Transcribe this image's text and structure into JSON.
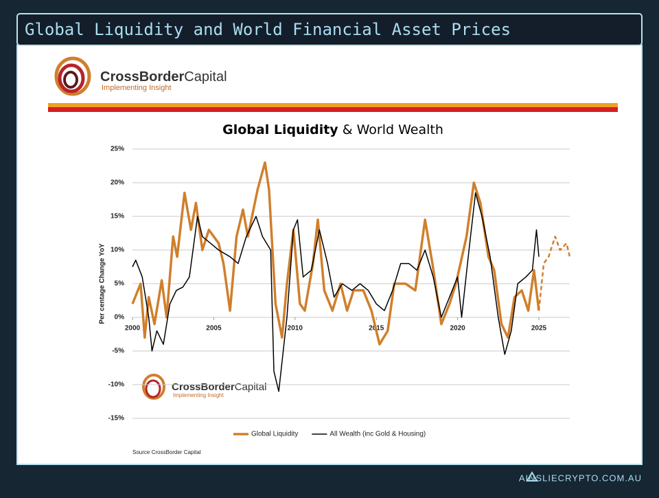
{
  "header": {
    "title": "Global Liquidity and World Financial Asset Prices"
  },
  "logo": {
    "name_bold": "CrossBorder",
    "name_rest": "Capital",
    "tagline": "Implementing Insight"
  },
  "chart_data": {
    "type": "line",
    "title": [
      "Global Liquidity",
      "& World Wealth"
    ],
    "y_label": "Per centage Change YoY",
    "source": "Source CrossBorder Capital",
    "xlim": [
      2000,
      2026.9
    ],
    "xticks": [
      2000,
      2005,
      2010,
      2015,
      2020,
      2025
    ],
    "ylim": [
      -15,
      25
    ],
    "yticks": [
      {
        "value": -15,
        "label": "-15%"
      },
      {
        "value": -10,
        "label": "-10%"
      },
      {
        "value": -5,
        "label": "-5%"
      },
      {
        "value": 0,
        "label": "0%"
      },
      {
        "value": 5,
        "label": "5%"
      },
      {
        "value": 10,
        "label": "10%"
      },
      {
        "value": 15,
        "label": "15%"
      },
      {
        "value": 20,
        "label": "20%"
      },
      {
        "value": 25,
        "label": "25%"
      }
    ],
    "grid": true,
    "series": [
      {
        "name": "Global Liquidity",
        "color": "#d07f2c",
        "width": 3.5,
        "x": [
          2000,
          2000.5,
          2000.75,
          2001,
          2001.35,
          2001.8,
          2002.1,
          2002.5,
          2002.75,
          2003.2,
          2003.6,
          2003.9,
          2004.3,
          2004.7,
          2005.3,
          2005.6,
          2006,
          2006.4,
          2006.8,
          2007.1,
          2007.7,
          2008.15,
          2008.4,
          2008.8,
          2009.2,
          2009.5,
          2009.9,
          2010.3,
          2010.6,
          2011.1,
          2011.4,
          2011.8,
          2012.3,
          2012.8,
          2013.2,
          2013.6,
          2014.2,
          2014.7,
          2015.2,
          2015.7,
          2016.1,
          2016.8,
          2017.4,
          2018,
          2018.45,
          2019,
          2019.5,
          2019.9,
          2020.55,
          2021,
          2021.4,
          2021.9,
          2022.25,
          2022.7,
          2023.1,
          2023.5,
          2023.95,
          2024.35,
          2024.7,
          2025
        ],
        "values": [
          2,
          5,
          -3,
          3,
          -1,
          5.5,
          0,
          12,
          9,
          18.5,
          13,
          17,
          10,
          13,
          11,
          8,
          1,
          12,
          16,
          12,
          19,
          23,
          19,
          2,
          -3,
          5,
          13,
          2,
          1,
          8,
          14.5,
          4,
          1,
          5,
          1,
          4,
          4,
          1,
          -4,
          -2,
          5,
          5,
          4,
          14.5,
          8,
          -1,
          2,
          5,
          12,
          20,
          17,
          9,
          7,
          -1,
          -3,
          3,
          4,
          1,
          7,
          1
        ]
      },
      {
        "name": "All Wealth (inc Gold & Housing)",
        "color": "#000000",
        "width": 1.5,
        "x": [
          2000,
          2000.2,
          2000.6,
          2001,
          2001.2,
          2001.5,
          2001.9,
          2002.3,
          2002.7,
          2003.1,
          2003.5,
          2004,
          2004.3,
          2004.8,
          2005.3,
          2006,
          2006.5,
          2007,
          2007.6,
          2008,
          2008.5,
          2008.7,
          2009,
          2009.5,
          2009.9,
          2010.15,
          2010.5,
          2011,
          2011.5,
          2012,
          2012.4,
          2012.9,
          2013.5,
          2014,
          2014.5,
          2015,
          2015.5,
          2016,
          2016.5,
          2017,
          2017.5,
          2018,
          2018.5,
          2019,
          2019.5,
          2020,
          2020.25,
          2020.7,
          2021.1,
          2021.5,
          2022,
          2022.5,
          2022.9,
          2023.3,
          2023.7,
          2024.2,
          2024.6,
          2024.85,
          2025
        ],
        "values": [
          7.5,
          8.5,
          6,
          0,
          -5,
          -2,
          -4,
          2,
          4,
          4.5,
          6,
          15,
          12,
          11,
          10,
          9,
          8,
          12,
          15,
          12,
          10,
          -8,
          -11,
          0,
          13,
          14.5,
          6,
          7,
          13,
          8,
          3,
          5,
          4,
          5,
          4,
          2,
          1,
          4,
          8,
          8,
          7,
          10,
          6,
          0,
          3,
          6,
          0,
          10,
          18.5,
          15,
          9,
          0,
          -5.5,
          -2,
          5,
          6,
          7,
          13,
          9
        ]
      },
      {
        "color": "#d07f2c",
        "width": 2.5,
        "dash": true,
        "x": [
          2025,
          2025.3,
          2025.6,
          2026,
          2026.3,
          2026.7,
          2026.9
        ],
        "values": [
          1,
          8,
          9,
          12,
          10,
          11,
          9
        ]
      }
    ]
  },
  "footer": {
    "site": "AINSLIECRYPTO.COM.AU"
  }
}
